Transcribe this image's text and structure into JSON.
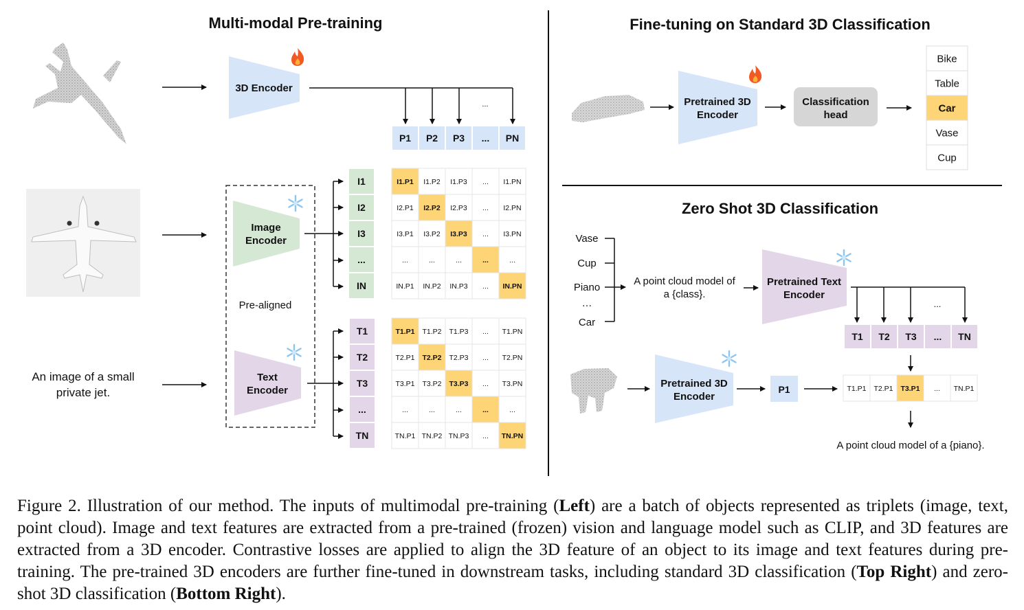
{
  "left": {
    "title": "Multi-modal Pre-training",
    "encoder_3d": "3D Encoder",
    "image_encoder": [
      "Image",
      "Encoder"
    ],
    "text_encoder": [
      "Text",
      "Encoder"
    ],
    "pre_aligned": "Pre-aligned",
    "text_input": [
      "An image of a small",
      "private jet."
    ],
    "ellipsis": "...",
    "point_features": [
      "P1",
      "P2",
      "P3",
      "...",
      "PN"
    ],
    "image_features": [
      "I1",
      "I2",
      "I3",
      "...",
      "IN"
    ],
    "text_features": [
      "T1",
      "T2",
      "T3",
      "...",
      "TN"
    ],
    "image_matrix": [
      [
        "I1.P1",
        "I1.P2",
        "I1.P3",
        "...",
        "I1.PN"
      ],
      [
        "I2.P1",
        "I2.P2",
        "I2.P3",
        "...",
        "I2.PN"
      ],
      [
        "I3.P1",
        "I3.P2",
        "I3.P3",
        "...",
        "I3.PN"
      ],
      [
        "...",
        "...",
        "...",
        "...",
        "..."
      ],
      [
        "IN.P1",
        "IN.P2",
        "IN.P3",
        "...",
        "IN.PN"
      ]
    ],
    "text_matrix": [
      [
        "T1.P1",
        "T1.P2",
        "T1.P3",
        "...",
        "T1.PN"
      ],
      [
        "T2.P1",
        "T2.P2",
        "T2.P3",
        "...",
        "T2.PN"
      ],
      [
        "T3.P1",
        "T3.P2",
        "T3.P3",
        "...",
        "T3.PN"
      ],
      [
        "...",
        "...",
        "...",
        "...",
        "..."
      ],
      [
        "TN.P1",
        "TN.P2",
        "TN.P3",
        "...",
        "TN.PN"
      ]
    ]
  },
  "top_right": {
    "title": "Fine-tuning on Standard 3D Classification",
    "encoder": [
      "Pretrained 3D",
      "Encoder"
    ],
    "head": [
      "Classification",
      "head"
    ],
    "classes": [
      "Bike",
      "Table",
      "Car",
      "Vase",
      "Cup"
    ],
    "selected_class": "Car"
  },
  "bottom_right": {
    "title": "Zero Shot 3D Classification",
    "classes": [
      "Vase",
      "Cup",
      "Piano",
      "…",
      "Car"
    ],
    "prompt": [
      "A point cloud model of",
      "a {class}."
    ],
    "text_encoder": [
      "Pretrained Text",
      "Encoder"
    ],
    "encoder_3d": [
      "Pretrained 3D",
      "Encoder"
    ],
    "ellipsis": "...",
    "text_features": [
      "T1",
      "T2",
      "T3",
      "...",
      "TN"
    ],
    "point_feature": "P1",
    "scores": [
      "T1.P1",
      "T2.P1",
      "T3.P1",
      "...",
      "TN.P1"
    ],
    "selected_score": "T3.P1",
    "result": "A point cloud model of a {piano}."
  },
  "caption": [
    {
      "text": "Figure 2. Illustration of our method. The inputs of multimodal pre-training (",
      "bold": false
    },
    {
      "text": "Left",
      "bold": true
    },
    {
      "text": ") are a batch of objects represented as triplets (image, text, point cloud). Image and text features are extracted from a pre-trained (frozen) vision and language model such as CLIP, and 3D features are extracted from a 3D encoder. Contrastive losses are applied to align the 3D feature of an object to its image and text features during pre-training. The pre-trained 3D encoders are further fine-tuned in downstream tasks, including standard 3D classification (",
      "bold": false
    },
    {
      "text": "Top Right",
      "bold": true
    },
    {
      "text": ") and zero-shot 3D classification (",
      "bold": false
    },
    {
      "text": "Bottom Right",
      "bold": true
    },
    {
      "text": ").",
      "bold": false
    }
  ],
  "colors": {
    "blue_encoder": "#d7e5f8",
    "green_encoder": "#d5e8d4",
    "purple_encoder": "#e3d6e8",
    "highlight": "#fdd577",
    "head_gray": "#d6d6d6"
  },
  "icons": {
    "trainable": "fire-icon",
    "frozen": "snowflake-icon"
  }
}
